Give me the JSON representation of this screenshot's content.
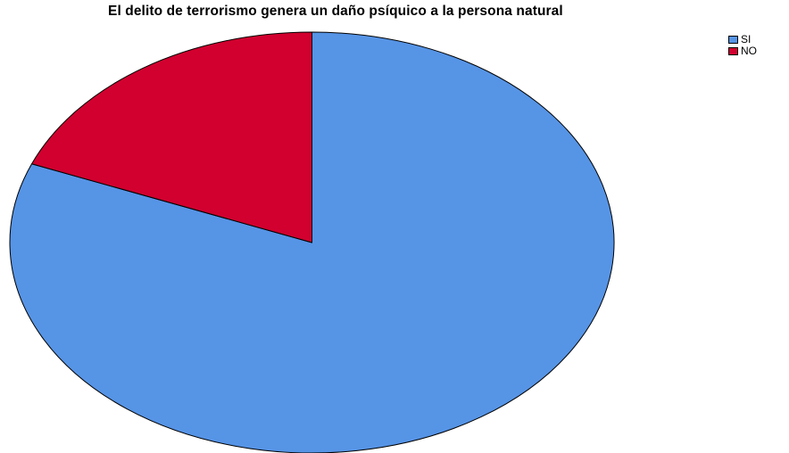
{
  "chart_data": {
    "type": "pie",
    "title": "El delito de terrorismo genera un daño psíquico a la persona natural",
    "slices": [
      {
        "label": "SI",
        "value": 81.1,
        "color": "#5694E6"
      },
      {
        "label": "NO",
        "value": 18.9,
        "color": "#D1002F"
      }
    ],
    "start": "top",
    "direction": "clockwise",
    "legend_position": "top-right",
    "edge_color": "#000000"
  }
}
